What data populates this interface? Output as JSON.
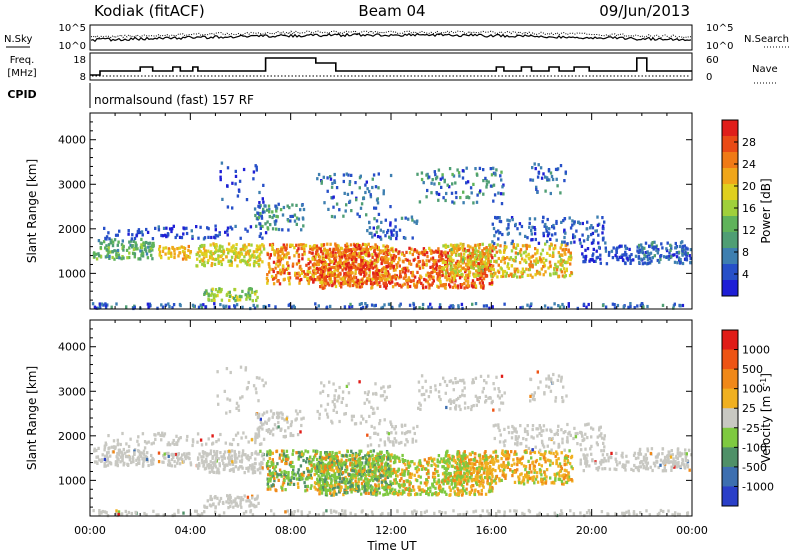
{
  "header": {
    "station": "Kodiak (fitACF)",
    "beam": "Beam 04",
    "date": "09/Jun/2013"
  },
  "panels": {
    "nsky": {
      "label": "N.Sky",
      "ticks": [
        "10^5",
        "10^0"
      ],
      "right_label": "N.Search",
      "right_ticks": [
        "10^5",
        "10^0"
      ]
    },
    "freq": {
      "label_line1": "Freq.",
      "label_line2": "[MHz]",
      "ticks": [
        "18",
        "8"
      ],
      "right_label": "Nave",
      "right_ticks": [
        "60",
        "0"
      ]
    },
    "cpid": {
      "label": "CPID",
      "mode": "normalsound (fast) 157 RF"
    }
  },
  "chart_data": [
    {
      "type": "heatmap",
      "name": "power",
      "ylabel": "Slant Range [km]",
      "xlabel": "",
      "ylim": [
        200,
        4600
      ],
      "xlim": [
        "00:00",
        "24:00"
      ],
      "yticks": [
        "1000",
        "2000",
        "3000",
        "4000"
      ],
      "xticks": [
        "00:00",
        "04:00",
        "08:00",
        "12:00",
        "16:00",
        "20:00",
        "00:00"
      ],
      "colorbar": {
        "label": "Power [dB]",
        "ticks": [
          "28",
          "24",
          "20",
          "16",
          "12",
          "8",
          "4"
        ],
        "colors": [
          "#1f1fd6",
          "#2750c8",
          "#3e7fb0",
          "#4f9e74",
          "#5fb35a",
          "#9fd03a",
          "#e0d01e",
          "#f0a61a",
          "#f07a16",
          "#ea4a16",
          "#e01e1a"
        ]
      }
    },
    {
      "type": "heatmap",
      "name": "velocity",
      "ylabel": "Slant Range [km]",
      "xlabel": "Time UT",
      "ylim": [
        200,
        4600
      ],
      "xlim": [
        "00:00",
        "24:00"
      ],
      "yticks": [
        "1000",
        "2000",
        "3000",
        "4000"
      ],
      "xticks": [
        "00:00",
        "04:00",
        "08:00",
        "12:00",
        "16:00",
        "20:00",
        "00:00"
      ],
      "colorbar": {
        "label": "Velocity [m s",
        "label_sup": "-1",
        "label_end": "]",
        "ticks": [
          "1000",
          "500",
          "100",
          "25",
          "-25",
          "-100",
          "-500",
          "-1000"
        ],
        "colors": [
          "#2a3fc8",
          "#3d6fb0",
          "#4f9068",
          "#7ec940",
          "#c8c8c2",
          "#f0b020",
          "#f08818",
          "#ee5414",
          "#e01c18"
        ]
      }
    }
  ]
}
